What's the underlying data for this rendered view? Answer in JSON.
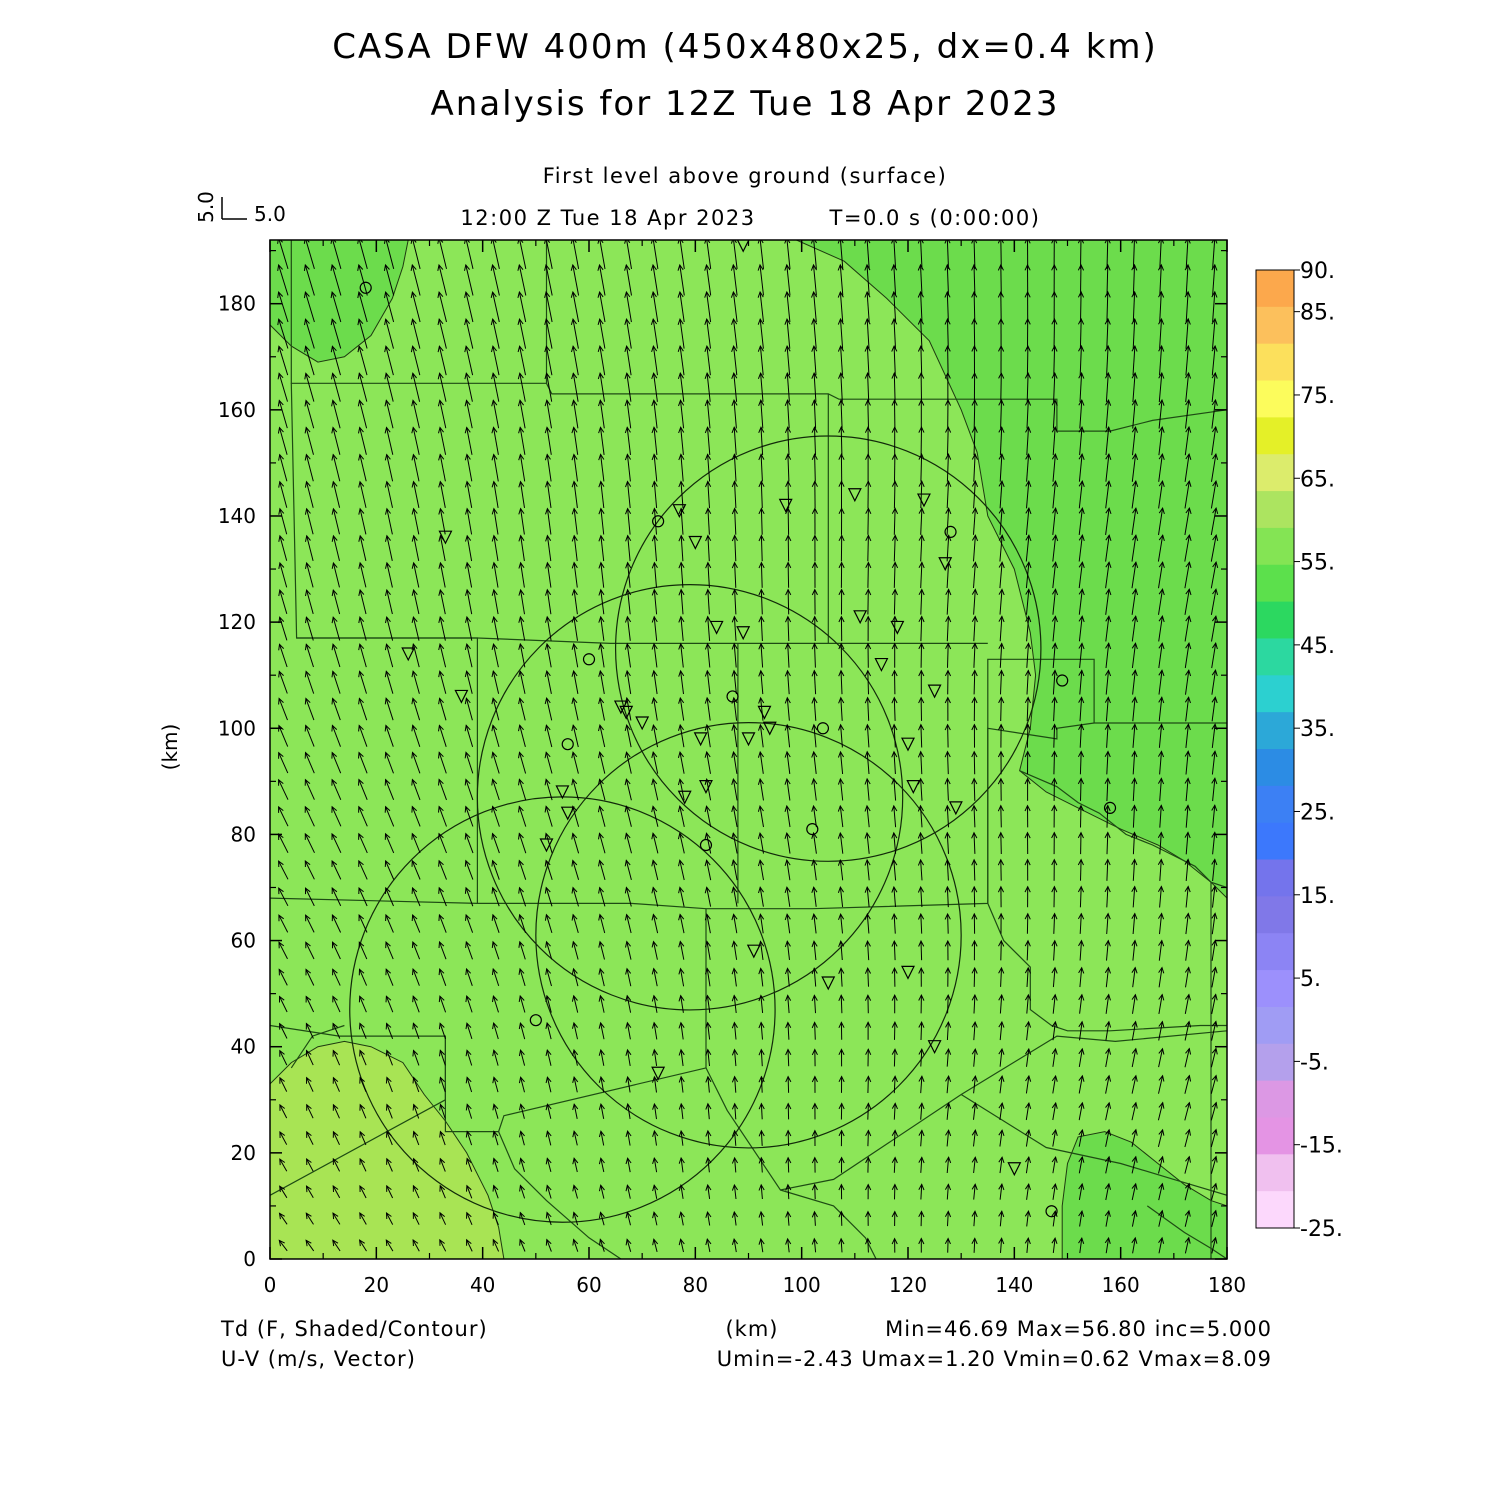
{
  "header": {
    "title_line1": "CASA DFW 400m (450x480x25, dx=0.4 km)",
    "title_line2": "Analysis for 12Z Tue 18 Apr 2023",
    "level": "First level above ground (surface)",
    "valid_time": "12:00 Z Tue 18 Apr 2023",
    "elapsed": "T=0.0 s (0:00:00)"
  },
  "vector_key": {
    "vertical": "5.0",
    "horizontal": "5.0"
  },
  "footer": {
    "field_line1": "Td (F, Shaded/Contour)",
    "field_line2": "U-V (m/s, Vector)",
    "xunit": "(km)",
    "stats_line1": "Min=46.69 Max=56.80 inc=5.000",
    "stats_line2": "Umin=-2.43 Umax=1.20 Vmin=0.62 Vmax=8.09"
  },
  "chart_data": {
    "type": "heatmap",
    "title": "CASA DFW 400m (450x480x25, dx=0.4 km)",
    "subtitle": "Analysis for 12Z Tue 18 Apr 2023",
    "xlabel": "(km)",
    "ylabel": "(km)",
    "xlim": [
      0,
      180
    ],
    "ylim": [
      0,
      192
    ],
    "xticks": [
      0,
      20,
      40,
      60,
      80,
      100,
      120,
      140,
      160,
      180
    ],
    "yticks": [
      0,
      20,
      40,
      60,
      80,
      100,
      120,
      140,
      160,
      180
    ],
    "field": "Td (F, Shaded/Contour)",
    "vectors": "U-V (m/s, Vector)",
    "min": 46.69,
    "max": 56.8,
    "inc": 5.0,
    "umin": -2.43,
    "umax": 1.2,
    "vmin": 0.62,
    "vmax": 8.09,
    "colorbar": {
      "labels": [
        "90.",
        "85.",
        "75.",
        "65.",
        "55.",
        "45.",
        "35.",
        "25.",
        "15.",
        "5.",
        "-5.",
        "-15.",
        "-25."
      ],
      "label_values": [
        90,
        85,
        75,
        65,
        55,
        45,
        35,
        25,
        15,
        5,
        -5,
        -15,
        -25
      ],
      "levels": [
        -25,
        -20,
        -15,
        -10,
        -5,
        0,
        5,
        10,
        15,
        20,
        25,
        30,
        35,
        40,
        45,
        50,
        55,
        60,
        65,
        70,
        75,
        80,
        85,
        90
      ],
      "colors": [
        "#fcd8fc",
        "#f0c0ef",
        "#e494e4",
        "#dc98e4",
        "#b4a0ec",
        "#a09cf4",
        "#9c90fc",
        "#8c84f4",
        "#8078e8",
        "#7474ec",
        "#3c78fc",
        "#3c80f4",
        "#2c8ce4",
        "#2ca8d8",
        "#2cd0d0",
        "#2cd8a0",
        "#2cd860",
        "#5ce04c",
        "#84e454",
        "#ace460",
        "#dcec6c",
        "#e4f028",
        "#fcfc5c",
        "#fce05c",
        "#fcc05c",
        "#fca84c"
      ]
    },
    "shading": {
      "base_color": "#8ce658",
      "regions": [
        {
          "level": "45-50",
          "color": "#6cdc4c",
          "desc": "upper-left corner"
        },
        {
          "level": "45-50",
          "color": "#6cdc4c",
          "desc": "upper-right / east side"
        },
        {
          "level": "45-50",
          "color": "#6cdc4c",
          "desc": "lower-right corner"
        },
        {
          "level": "55-60",
          "color": "#a8e454",
          "desc": "lower-left corner"
        }
      ]
    },
    "radar_circles": [
      {
        "cx": 105,
        "cy": 115,
        "r": 40
      },
      {
        "cx": 79,
        "cy": 87,
        "r": 40
      },
      {
        "cx": 90,
        "cy": 61,
        "r": 40
      },
      {
        "cx": 55,
        "cy": 47,
        "r": 40
      }
    ],
    "stations_triangle": [
      [
        89,
        191
      ],
      [
        33,
        136
      ],
      [
        26,
        114
      ],
      [
        36,
        106
      ],
      [
        77,
        141
      ],
      [
        80,
        135
      ],
      [
        97,
        142
      ],
      [
        110,
        144
      ],
      [
        123,
        143
      ],
      [
        127,
        131
      ],
      [
        111,
        121
      ],
      [
        118,
        119
      ],
      [
        84,
        119
      ],
      [
        89,
        118
      ],
      [
        115,
        112
      ],
      [
        125,
        107
      ],
      [
        66,
        104
      ],
      [
        67,
        103
      ],
      [
        70,
        101
      ],
      [
        93,
        103
      ],
      [
        94,
        100
      ],
      [
        90,
        98
      ],
      [
        81,
        98
      ],
      [
        120,
        97
      ],
      [
        55,
        88
      ],
      [
        56,
        84
      ],
      [
        78,
        87
      ],
      [
        82,
        89
      ],
      [
        121,
        89
      ],
      [
        129,
        85
      ],
      [
        52,
        78
      ],
      [
        91,
        58
      ],
      [
        120,
        54
      ],
      [
        105,
        52
      ],
      [
        125,
        40
      ],
      [
        73,
        35
      ],
      [
        140,
        17
      ]
    ],
    "stations_circle": [
      [
        18,
        183
      ],
      [
        73,
        139
      ],
      [
        128,
        137
      ],
      [
        60,
        113
      ],
      [
        87,
        106
      ],
      [
        104,
        100
      ],
      [
        149,
        109
      ],
      [
        56,
        97
      ],
      [
        102,
        81
      ],
      [
        82,
        78
      ],
      [
        158,
        85
      ],
      [
        50,
        45
      ],
      [
        147,
        9
      ]
    ]
  }
}
